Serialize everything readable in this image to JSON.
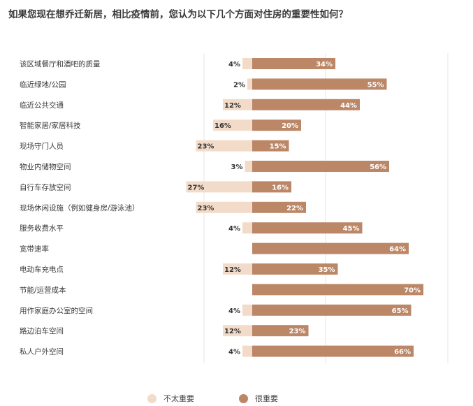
{
  "chart_data": {
    "type": "bar",
    "title": "如果您现在想乔迁新居，相比疫情前，您认为以下几个方面对住房的重要性如何？",
    "categories": [
      "该区域餐厅和酒吧的质量",
      "临近绿地/公园",
      "临近公共交通",
      "智能家居/家居科技",
      "现场守门人员",
      "物业内储物空间",
      "自行车存放空间",
      "现场休闲设施（例如健身房/游泳池）",
      "服务收费水平",
      "宽带速率",
      "电动车充电点",
      "节能/运营成本",
      "用作家庭办公室的空间",
      "路边泊车空间",
      "私人户外空间"
    ],
    "series": [
      {
        "name": "不太重要",
        "values": [
          4,
          2,
          12,
          16,
          23,
          3,
          27,
          23,
          4,
          0,
          12,
          0,
          4,
          12,
          4
        ],
        "labels": [
          "4%",
          "2%",
          "12%",
          "16%",
          "23%",
          "3%",
          "27%",
          "23%",
          "4%",
          "",
          "12%",
          "",
          "4%",
          "12%",
          "4%"
        ]
      },
      {
        "name": "很重要",
        "values": [
          34,
          55,
          44,
          20,
          15,
          56,
          16,
          22,
          45,
          64,
          35,
          70,
          65,
          23,
          66
        ],
        "labels": [
          "34%",
          "55%",
          "44%",
          "20%",
          "15%",
          "56%",
          "16%",
          "22%",
          "45%",
          "64%",
          "35%",
          "70%",
          "65%",
          "23%",
          "66%"
        ]
      }
    ],
    "colors": {
      "less_important": "#f2dcc9",
      "very_important": "#bb8767",
      "grid": "#e6e6e6"
    },
    "legend_position": "bottom",
    "grid": true
  }
}
